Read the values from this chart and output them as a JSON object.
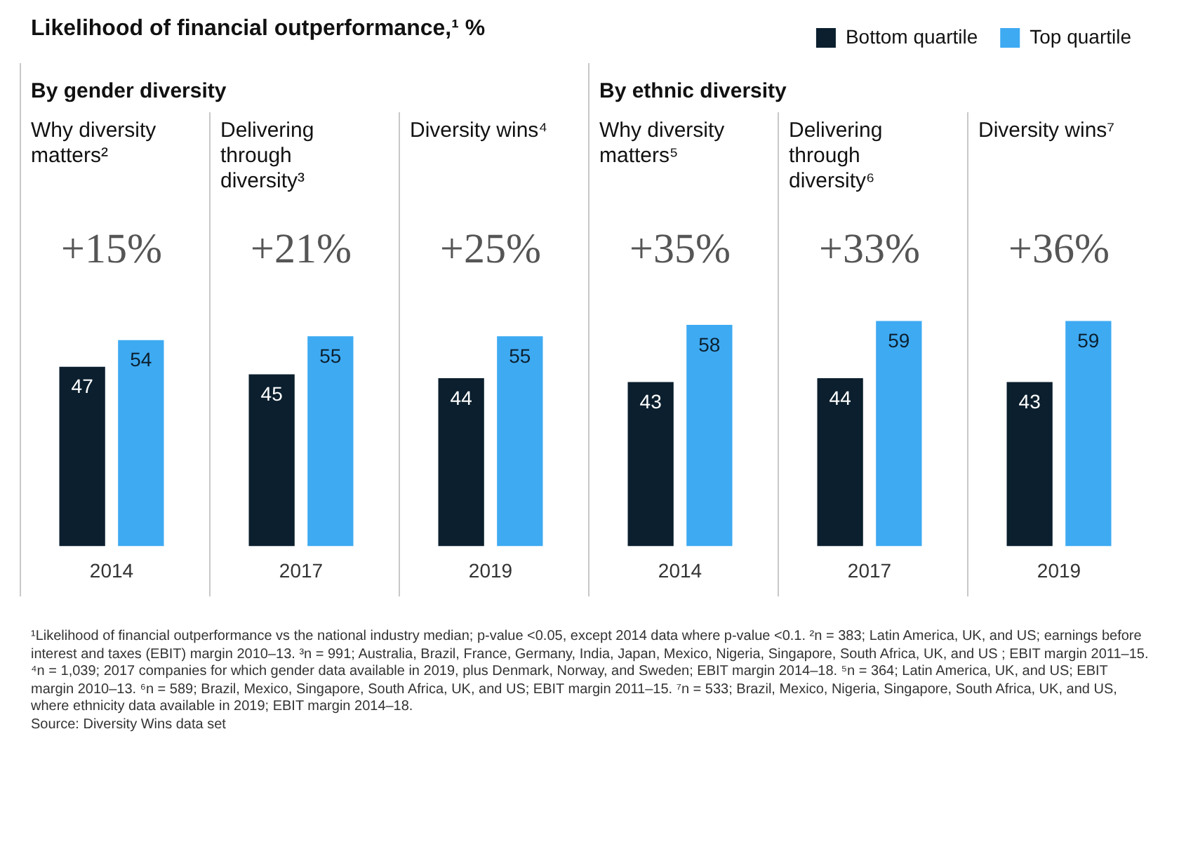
{
  "chart_data": {
    "type": "bar",
    "title": "Likelihood of financial outperformance,¹ %",
    "categories": [
      "2014",
      "2017",
      "2019",
      "2014",
      "2017",
      "2019"
    ],
    "series": [
      {
        "name": "Bottom quartile",
        "color": "#0b1f2e",
        "values": [
          47,
          45,
          44,
          43,
          44,
          43
        ]
      },
      {
        "name": "Top quartile",
        "color": "#3eaaf2",
        "values": [
          54,
          55,
          55,
          58,
          59,
          59
        ]
      }
    ],
    "data_labels": true,
    "grid": false,
    "tick_labels": "x",
    "legend": "top right",
    "annotations": [
      "By gender diversity",
      "By ethnic diversity",
      "Why diversity matters²",
      "Delivering through diversity³",
      "Diversity wins⁴",
      "Why diversity matters⁵",
      "Delivering through diversity⁶",
      "Diversity wins⁷",
      "+15%",
      "+21%",
      "+25%",
      "+35%",
      "+33%",
      "+36%",
      "¹Likelihood of financial outperformance vs the national industry median; p-value <0.05, except 2014 data where p-value <0.1. ²n = 383; Latin America, UK, and US; earnings before interest and taxes (EBIT) margin 2010–13. ³n = 991; Australia, Brazil, France, Germany, India, Japan, Mexico, Nigeria, Singapore, South Africa, UK, and US ; EBIT margin 2011–15. ⁴n = 1,039; 2017 companies for which gender data available in 2019, plus Denmark, Norway, and Sweden;  EBIT margin 2014–18. ⁵n = 364; Latin America, UK, and US; EBIT margin 2010–13. ⁶n = 589; Brazil, Mexico, Singapore, South Africa, UK, and US; EBIT margin 2011–15. ⁷n = 533; Brazil, Mexico, Nigeria, Singapore, South Africa, UK, and US, where ethnicity data available in 2019; EBIT margin 2014–18.",
      "Source: Diversity Wins data set"
    ]
  }
}
